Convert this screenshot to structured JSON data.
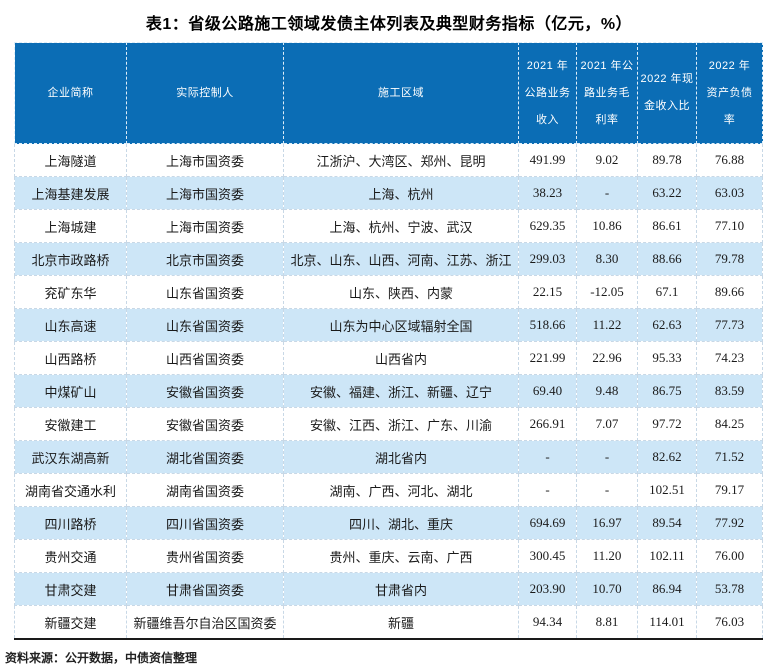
{
  "title": "表1：省级公路施工领域发债主体列表及典型财务指标（亿元，%）",
  "source_note": "资料来源：公开数据，中债资信整理",
  "colors": {
    "header_bg": "#0B6DB5",
    "header_text": "#FFFFFF",
    "alt_row_bg": "#CDE6F7",
    "body_border": "#C8D8E6",
    "bottom_rule": "#1A1A1A"
  },
  "chart_data": {
    "type": "table",
    "columns": [
      "企业简称",
      "实际控制人",
      "施工区域",
      "2021 年\n公路业务\n收入",
      "2021 年公\n路业务毛\n利率",
      "2022 年现\n金收入比",
      "2022 年\n资产负债\n率"
    ],
    "rows": [
      [
        "上海隧道",
        "上海市国资委",
        "江浙沪、大湾区、郑州、昆明",
        "491.99",
        "9.02",
        "89.78",
        "76.88"
      ],
      [
        "上海基建发展",
        "上海市国资委",
        "上海、杭州",
        "38.23",
        "-",
        "63.22",
        "63.03"
      ],
      [
        "上海城建",
        "上海市国资委",
        "上海、杭州、宁波、武汉",
        "629.35",
        "10.86",
        "86.61",
        "77.10"
      ],
      [
        "北京市政路桥",
        "北京市国资委",
        "北京、山东、山西、河南、江苏、浙江",
        "299.03",
        "8.30",
        "88.66",
        "79.78"
      ],
      [
        "兖矿东华",
        "山东省国资委",
        "山东、陕西、内蒙",
        "22.15",
        "-12.05",
        "67.1",
        "89.66"
      ],
      [
        "山东高速",
        "山东省国资委",
        "山东为中心区域辐射全国",
        "518.66",
        "11.22",
        "62.63",
        "77.73"
      ],
      [
        "山西路桥",
        "山西省国资委",
        "山西省内",
        "221.99",
        "22.96",
        "95.33",
        "74.23"
      ],
      [
        "中煤矿山",
        "安徽省国资委",
        "安徽、福建、浙江、新疆、辽宁",
        "69.40",
        "9.48",
        "86.75",
        "83.59"
      ],
      [
        "安徽建工",
        "安徽省国资委",
        "安徽、江西、浙江、广东、川渝",
        "266.91",
        "7.07",
        "97.72",
        "84.25"
      ],
      [
        "武汉东湖高新",
        "湖北省国资委",
        "湖北省内",
        "-",
        "-",
        "82.62",
        "71.52"
      ],
      [
        "湖南省交通水利",
        "湖南省国资委",
        "湖南、广西、河北、湖北",
        "-",
        "-",
        "102.51",
        "79.17"
      ],
      [
        "四川路桥",
        "四川省国资委",
        "四川、湖北、重庆",
        "694.69",
        "16.97",
        "89.54",
        "77.92"
      ],
      [
        "贵州交通",
        "贵州省国资委",
        "贵州、重庆、云南、广西",
        "300.45",
        "11.20",
        "102.11",
        "76.00"
      ],
      [
        "甘肃交建",
        "甘肃省国资委",
        "甘肃省内",
        "203.90",
        "10.70",
        "86.94",
        "53.78"
      ],
      [
        "新疆交建",
        "新疆维吾尔自治区国资委",
        "新疆",
        "94.34",
        "8.81",
        "114.01",
        "76.03"
      ]
    ]
  }
}
